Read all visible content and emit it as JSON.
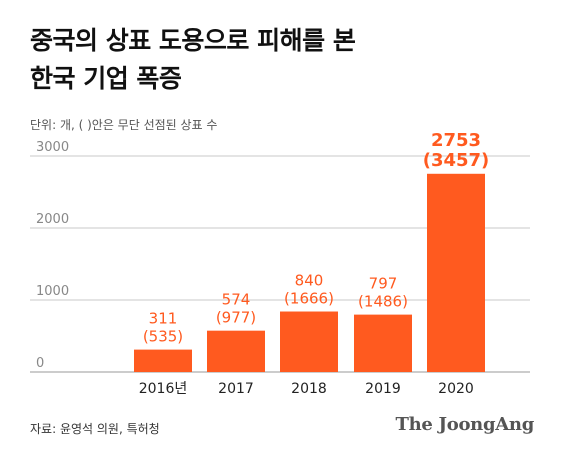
{
  "title": {
    "line1": "중국의 상표 도용으로 피해를 본",
    "line2": "한국 기업 폭증"
  },
  "unit_note": "단위: 개, ( )안은 무단 선점된 상표 수",
  "source": "자료: 윤영석 의원, 특허청",
  "brand": "The JoongAng",
  "colors": {
    "bar": "#ff5a1f",
    "label": "#ff5a1f",
    "axis_text": "#888888",
    "grid": "#c8c8c8"
  },
  "chart_data": {
    "type": "bar",
    "categories": [
      "2016년",
      "2017",
      "2018",
      "2019",
      "2020"
    ],
    "series": [
      {
        "values": [
          311,
          574,
          840,
          797,
          2753
        ]
      },
      {
        "values": [
          535,
          977,
          1666,
          1486,
          3457
        ]
      }
    ],
    "bar_labels": [
      "311",
      "574",
      "840",
      "797",
      "2753"
    ],
    "paren_labels": [
      "(535)",
      "(977)",
      "(1666)",
      "(1486)",
      "(3457)"
    ],
    "yticks": [
      0,
      1000,
      2000,
      3000
    ],
    "ylim": [
      0,
      3000
    ],
    "grid": true
  }
}
